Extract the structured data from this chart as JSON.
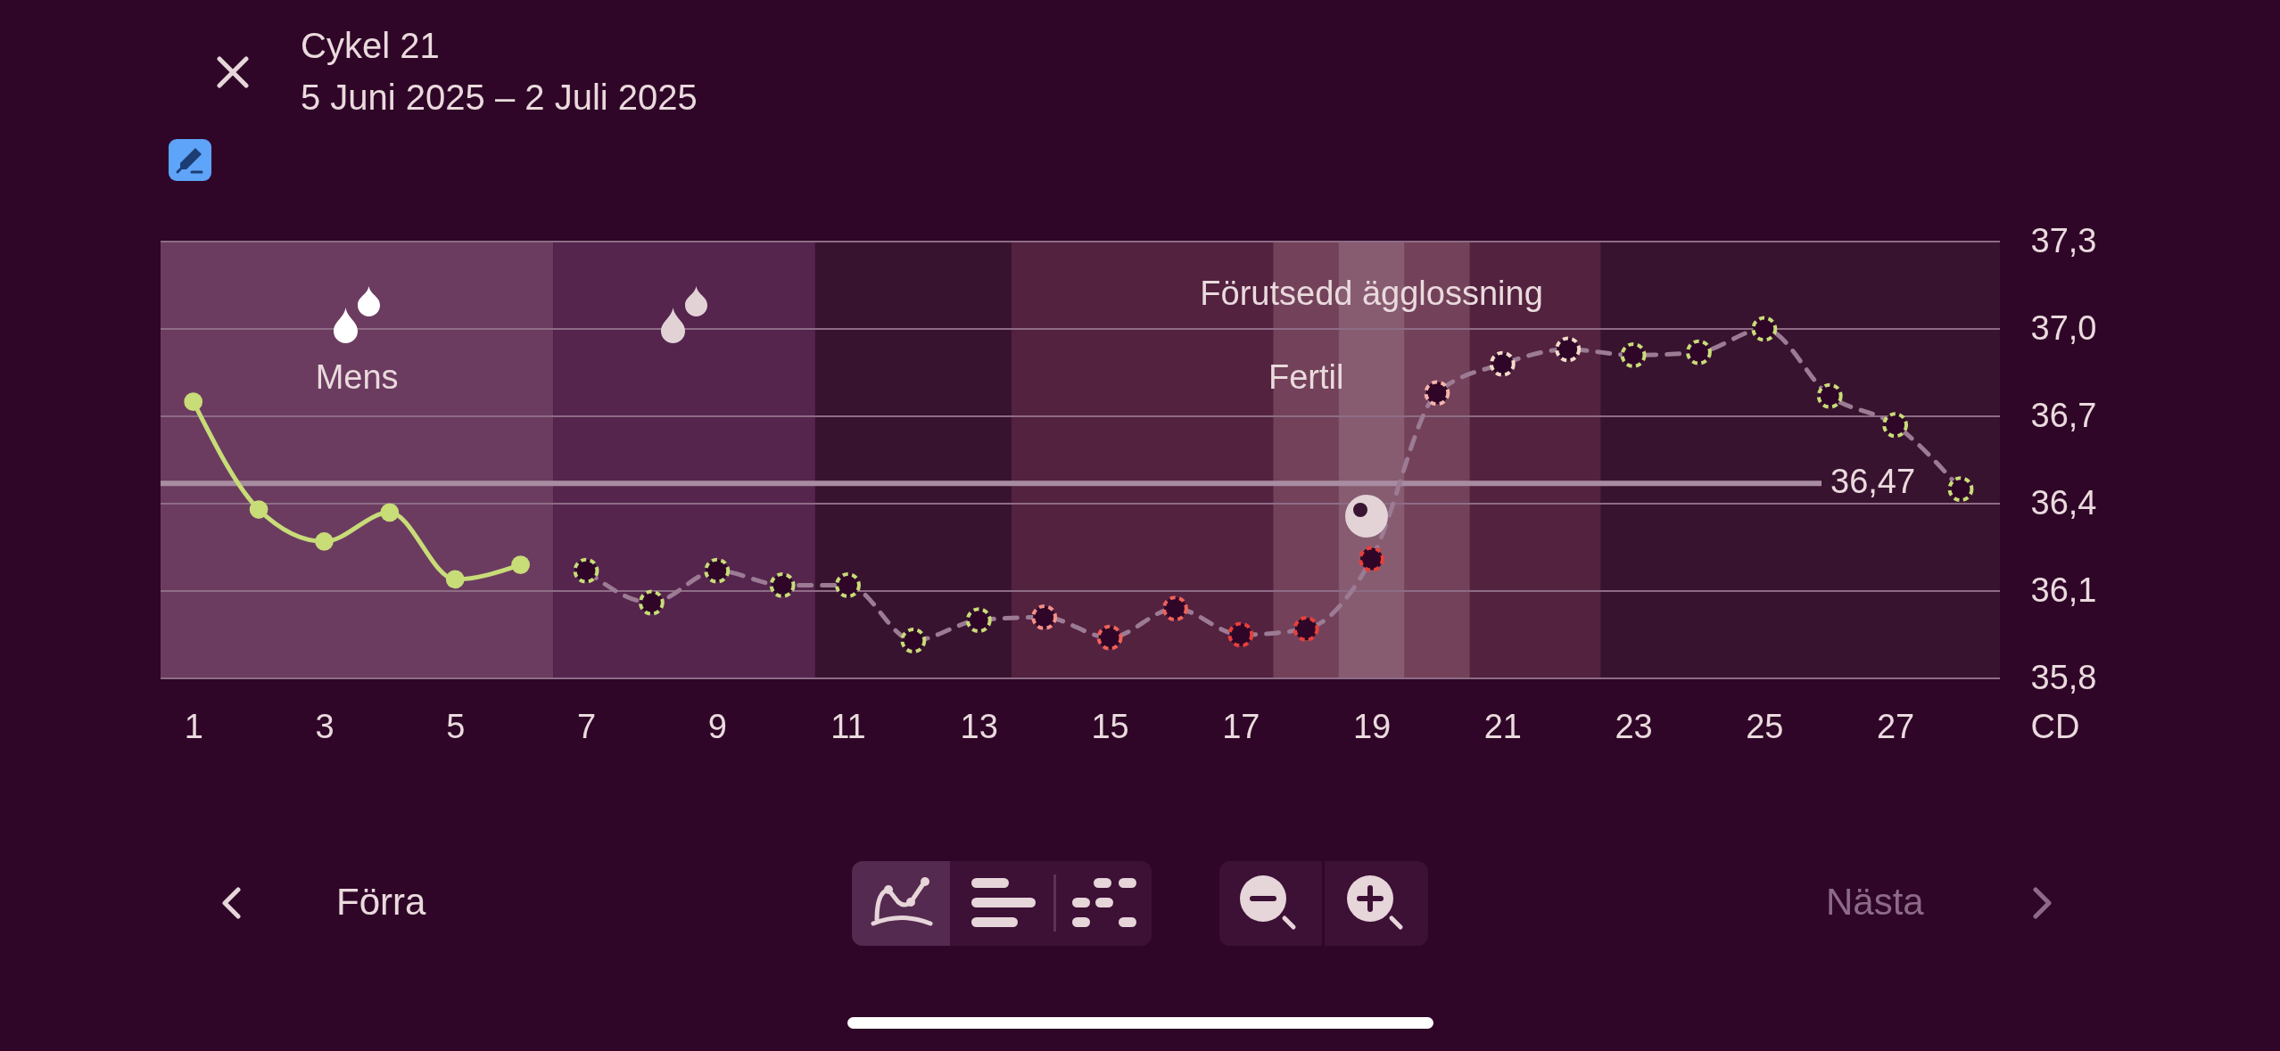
{
  "chart_data": {
    "type": "line",
    "title": "Cykel 21",
    "subtitle": "5 Juni 2025 – 2 Juli 2025",
    "xlabel": "CD",
    "xlim": [
      0.5,
      28.6
    ],
    "xticks": [
      1,
      3,
      5,
      7,
      9,
      11,
      13,
      15,
      17,
      19,
      21,
      23,
      25,
      27
    ],
    "ylim": [
      35.8,
      37.3
    ],
    "yticks": [
      {
        "value": 35.8,
        "label": "35,8"
      },
      {
        "value": 36.1,
        "label": "36,1"
      },
      {
        "value": 36.4,
        "label": "36,4"
      },
      {
        "value": 36.7,
        "label": "36,7"
      },
      {
        "value": 37.0,
        "label": "37,0"
      },
      {
        "value": 37.3,
        "label": "37,3"
      }
    ],
    "grid": "y",
    "series": [
      {
        "color": "#c8dc78",
        "line_style": "solid",
        "marker": "circle",
        "x": [
          1,
          2,
          3,
          4,
          5,
          6
        ],
        "values": [
          36.75,
          36.38,
          36.27,
          36.37,
          36.14,
          36.19
        ]
      },
      {
        "color": "#9c7b94",
        "line_style": "dashed",
        "marker": "circle",
        "x": [
          7,
          8,
          9,
          10,
          11,
          12,
          13,
          14,
          15,
          16,
          17,
          18,
          19,
          20,
          21,
          22,
          23,
          24,
          25,
          26,
          27,
          28
        ],
        "values": [
          36.17,
          36.06,
          36.17,
          36.12,
          36.12,
          35.93,
          36.0,
          36.01,
          35.94,
          36.04,
          35.95,
          35.97,
          36.21,
          36.78,
          36.88,
          36.93,
          36.91,
          36.92,
          37.0,
          36.77,
          36.67,
          36.45
        ],
        "colors": [
          "#c8dc78",
          "#c8dc78",
          "#c8dc78",
          "#c8dc78",
          "#c8dc78",
          "#c8dc78",
          "#c8dc78",
          "#f59088",
          "#f0625a",
          "#f0625a",
          "#e8403a",
          "#e8403a",
          "#e8403a",
          "#f4b4aa",
          "#f2dcc8",
          "#f2dcc8",
          "#c8dc78",
          "#c8dc78",
          "#c8dc78",
          "#c8dc78",
          "#c8dc78",
          "#c8dc78"
        ]
      }
    ],
    "ref_lines": [
      {
        "axis": "y",
        "value": 36.47,
        "label": "36,47",
        "color": "#a88ca2"
      }
    ],
    "bands": [
      {
        "axis": "x",
        "from": 0.5,
        "to": 6.5,
        "label": "Mens",
        "color": "#6b3c60"
      },
      {
        "axis": "x",
        "from": 6.5,
        "to": 10.5,
        "color": "#55254e"
      },
      {
        "axis": "x",
        "from": 13.5,
        "to": 22.5,
        "label": "Fertil",
        "color": "#53223f"
      },
      {
        "axis": "x",
        "from": 17.5,
        "to": 20.5,
        "color": "#73425a"
      },
      {
        "axis": "x",
        "from": 18.5,
        "to": 19.5,
        "label": "Förutsedd ägglossning",
        "color": "#875c70"
      }
    ],
    "annotations": [
      "Förra",
      "Nästa"
    ]
  }
}
